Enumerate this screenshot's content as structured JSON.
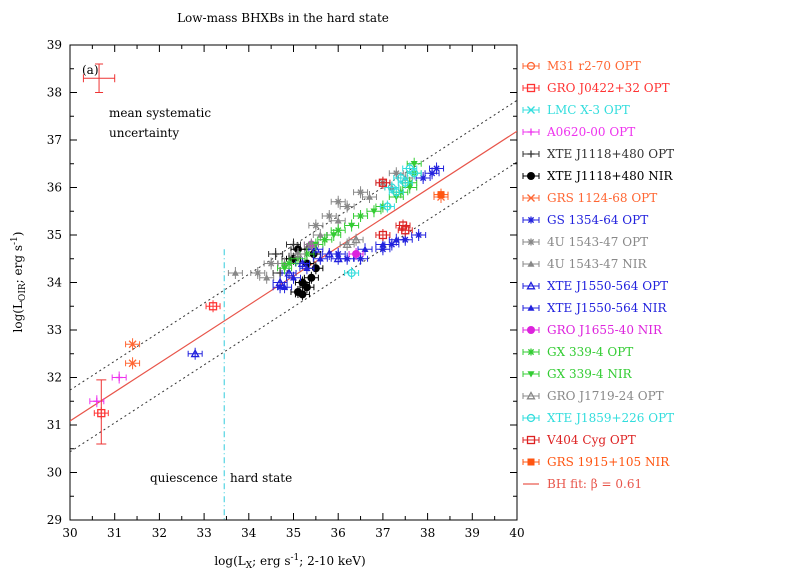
{
  "chart_data": {
    "type": "scatter",
    "title": "Low-mass BHXBs in the hard state",
    "panel_label": "(a)",
    "xlabel": "log(L_X; erg s^-1; 2-10 keV)",
    "xlabel_parts": {
      "main": "log(L",
      "sub": "X",
      "mid": "; erg s",
      "sup": "-1",
      "end": "; 2-10 keV)"
    },
    "ylabel": "log(L_OIR; erg s^-1)",
    "ylabel_parts": {
      "main": "log(L",
      "sub": "OIR",
      "mid": "; erg s",
      "sup": "-1",
      "end": ")"
    },
    "xlim": [
      30,
      40
    ],
    "ylim": [
      29,
      39
    ],
    "xticks": [
      "30",
      "31",
      "32",
      "33",
      "34",
      "35",
      "36",
      "37",
      "38",
      "39",
      "40"
    ],
    "yticks": [
      "29",
      "30",
      "31",
      "32",
      "33",
      "34",
      "35",
      "36",
      "37",
      "38",
      "39"
    ],
    "annotations": {
      "uncertainty_line1": "mean systematic",
      "uncertainty_line2": "uncertainty",
      "quiescence": "quiescence",
      "hard_state": "hard state"
    },
    "systematic_error": {
      "x": 30.65,
      "y": 38.3,
      "xerr": 0.35,
      "yerr": 0.3
    },
    "quiescence_boundary_x": 33.45,
    "fit": {
      "label": "BH fit: β = 0.61",
      "slope": 0.61,
      "x0": 36.5,
      "y0": 35.05,
      "band": 0.65,
      "color": "#e8554a"
    },
    "series": [
      {
        "name": "M31 r2-70",
        "band": "OPT",
        "color": "#ff6633",
        "marker": "circle-open",
        "points": []
      },
      {
        "name": "GRO J0422+32",
        "band": "OPT",
        "color": "#ff3333",
        "marker": "square-open",
        "points": [
          [
            30.7,
            31.25
          ],
          [
            33.2,
            33.5
          ]
        ]
      },
      {
        "name": "LMC X-3",
        "band": "OPT",
        "color": "#33dddd",
        "marker": "x",
        "points": []
      },
      {
        "name": "A0620-00",
        "band": "OPT",
        "color": "#ee33ee",
        "marker": "plus",
        "points": [
          [
            30.6,
            31.5
          ],
          [
            31.1,
            32.0
          ]
        ]
      },
      {
        "name": "XTE J1118+480",
        "band": "OPT",
        "color": "#333333",
        "marker": "plus",
        "points": [
          [
            34.7,
            34.2
          ],
          [
            34.9,
            34.5
          ],
          [
            35.1,
            34.6
          ],
          [
            35.3,
            34.7
          ],
          [
            35.0,
            34.8
          ],
          [
            34.6,
            34.6
          ]
        ]
      },
      {
        "name": "XTE J1118+480",
        "band": "NIR",
        "color": "#000000",
        "marker": "circle-filled",
        "points": [
          [
            35.1,
            33.8
          ],
          [
            35.2,
            33.75
          ],
          [
            35.3,
            33.9
          ],
          [
            35.4,
            34.1
          ],
          [
            35.5,
            34.3
          ],
          [
            35.3,
            34.4
          ],
          [
            35.2,
            34.0
          ],
          [
            35.45,
            34.6
          ],
          [
            35.0,
            34.5
          ],
          [
            35.1,
            34.7
          ]
        ]
      },
      {
        "name": "GRS 1124-68",
        "band": "OPT",
        "color": "#ff6633",
        "marker": "x",
        "points": [
          [
            31.4,
            32.7
          ],
          [
            31.4,
            32.3
          ],
          [
            38.3,
            35.8
          ]
        ]
      },
      {
        "name": "GS 1354-64",
        "band": "OPT",
        "color": "#2222dd",
        "marker": "asterisk",
        "points": [
          [
            34.7,
            33.9
          ],
          [
            36.0,
            34.6
          ],
          [
            36.2,
            34.5
          ],
          [
            36.5,
            34.5
          ],
          [
            37.0,
            34.7
          ],
          [
            37.2,
            34.8
          ],
          [
            37.5,
            34.9
          ],
          [
            37.8,
            35.0
          ],
          [
            38.1,
            36.3
          ],
          [
            38.2,
            36.4
          ],
          [
            37.9,
            36.2
          ]
        ]
      },
      {
        "name": "4U 1543-47",
        "band": "OPT",
        "color": "#888888",
        "marker": "asterisk",
        "points": [
          [
            36.0,
            35.7
          ],
          [
            36.5,
            35.9
          ],
          [
            37.0,
            36.1
          ],
          [
            37.3,
            36.3
          ],
          [
            35.8,
            35.4
          ],
          [
            35.5,
            35.2
          ],
          [
            36.2,
            35.6
          ],
          [
            34.5,
            34.4
          ],
          [
            34.2,
            34.2
          ]
        ]
      },
      {
        "name": "4U 1543-47",
        "band": "NIR",
        "color": "#888888",
        "marker": "triangle-filled",
        "points": [
          [
            36.7,
            35.8
          ],
          [
            37.2,
            36.0
          ],
          [
            37.5,
            36.2
          ],
          [
            36.0,
            35.3
          ],
          [
            35.6,
            35.0
          ],
          [
            34.8,
            34.4
          ],
          [
            34.4,
            34.1
          ],
          [
            33.7,
            34.2
          ]
        ]
      },
      {
        "name": "XTE J1550-564",
        "band": "OPT",
        "color": "#2222dd",
        "marker": "triangle-open",
        "points": [
          [
            32.8,
            32.5
          ],
          [
            34.7,
            34.0
          ],
          [
            34.9,
            34.2
          ],
          [
            35.2,
            34.4
          ],
          [
            35.5,
            34.7
          ],
          [
            35.8,
            34.6
          ],
          [
            36.0,
            34.5
          ]
        ]
      },
      {
        "name": "XTE J1550-564",
        "band": "NIR",
        "color": "#2222dd",
        "marker": "triangle-filled",
        "points": [
          [
            34.8,
            33.9
          ],
          [
            35.0,
            34.1
          ],
          [
            35.3,
            34.3
          ],
          [
            35.6,
            34.5
          ],
          [
            36.6,
            34.7
          ],
          [
            37.0,
            34.8
          ],
          [
            37.3,
            34.9
          ]
        ]
      },
      {
        "name": "GRO J1655-40",
        "band": "NIR",
        "color": "#dd22dd",
        "marker": "circle-filled",
        "points": [
          [
            35.4,
            34.8
          ],
          [
            36.4,
            34.6
          ]
        ]
      },
      {
        "name": "GX 339-4",
        "band": "OPT",
        "color": "#33cc33",
        "marker": "asterisk",
        "points": [
          [
            34.9,
            34.4
          ],
          [
            35.3,
            34.6
          ],
          [
            35.7,
            34.9
          ],
          [
            36.0,
            35.1
          ],
          [
            36.5,
            35.4
          ],
          [
            37.0,
            35.6
          ],
          [
            37.4,
            35.9
          ],
          [
            37.6,
            36.1
          ],
          [
            37.7,
            36.3
          ]
        ]
      },
      {
        "name": "GX 339-4",
        "band": "NIR",
        "color": "#33cc33",
        "marker": "triangle-down-filled",
        "points": [
          [
            34.8,
            34.3
          ],
          [
            35.1,
            34.5
          ],
          [
            35.5,
            34.8
          ],
          [
            35.9,
            35.0
          ],
          [
            36.3,
            35.2
          ],
          [
            36.8,
            35.5
          ],
          [
            37.3,
            35.8
          ],
          [
            37.6,
            36.0
          ],
          [
            37.7,
            36.5
          ]
        ]
      },
      {
        "name": "GRO J1719-24",
        "band": "OPT",
        "color": "#888888",
        "marker": "triangle-open",
        "points": [
          [
            35.1,
            34.6
          ],
          [
            35.4,
            34.8
          ],
          [
            36.2,
            34.8
          ],
          [
            36.4,
            34.9
          ]
        ]
      },
      {
        "name": "XTE J1859+226",
        "band": "OPT",
        "color": "#33dddd",
        "marker": "circle-open",
        "points": [
          [
            36.3,
            34.2
          ],
          [
            37.1,
            35.6
          ],
          [
            37.3,
            35.9
          ],
          [
            37.5,
            36.1
          ],
          [
            37.2,
            36.0
          ],
          [
            37.7,
            36.3
          ],
          [
            37.6,
            36.4
          ],
          [
            37.4,
            36.2
          ]
        ]
      },
      {
        "name": "V404 Cyg",
        "band": "OPT",
        "color": "#dd2222",
        "marker": "square-open",
        "points": [
          [
            37.0,
            35.0
          ],
          [
            37.0,
            36.1
          ],
          [
            37.5,
            35.1
          ],
          [
            37.45,
            35.2
          ]
        ]
      },
      {
        "name": "GRS 1915+105",
        "band": "NIR",
        "color": "#ff5511",
        "marker": "square-filled",
        "points": [
          [
            38.3,
            35.85
          ]
        ]
      }
    ]
  }
}
